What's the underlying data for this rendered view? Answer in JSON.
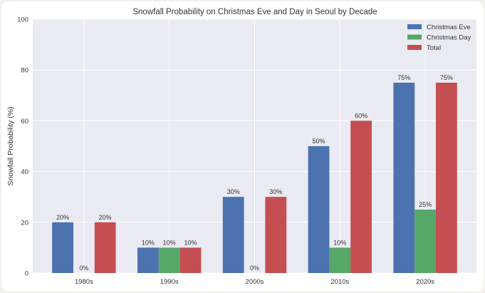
{
  "chart_data": {
    "type": "bar",
    "title": "Snowfall Probability on Christmas Eve and Day in Seoul by Decade",
    "xlabel": "",
    "ylabel": "Snowfall Probability (%)",
    "ylim": [
      0,
      100
    ],
    "yticks": [
      0,
      20,
      40,
      60,
      80,
      100
    ],
    "categories": [
      "1980s",
      "1990s",
      "2000s",
      "2010s",
      "2020s"
    ],
    "series": [
      {
        "name": "Christmas Eve",
        "color": "#4c72b0",
        "values": [
          20,
          10,
          30,
          50,
          75
        ],
        "labels": [
          "20%",
          "10%",
          "30%",
          "50%",
          "75%"
        ]
      },
      {
        "name": "Christmas Day",
        "color": "#55a868",
        "values": [
          0,
          10,
          0,
          10,
          25
        ],
        "labels": [
          "0%",
          "10%",
          "0%",
          "10%",
          "25%"
        ]
      },
      {
        "name": "Total",
        "color": "#c44e52",
        "values": [
          20,
          10,
          30,
          60,
          75
        ],
        "labels": [
          "20%",
          "10%",
          "30%",
          "60%",
          "75%"
        ]
      }
    ],
    "grid": true,
    "legend_position": "top-right",
    "background": "#eaeaf2"
  }
}
